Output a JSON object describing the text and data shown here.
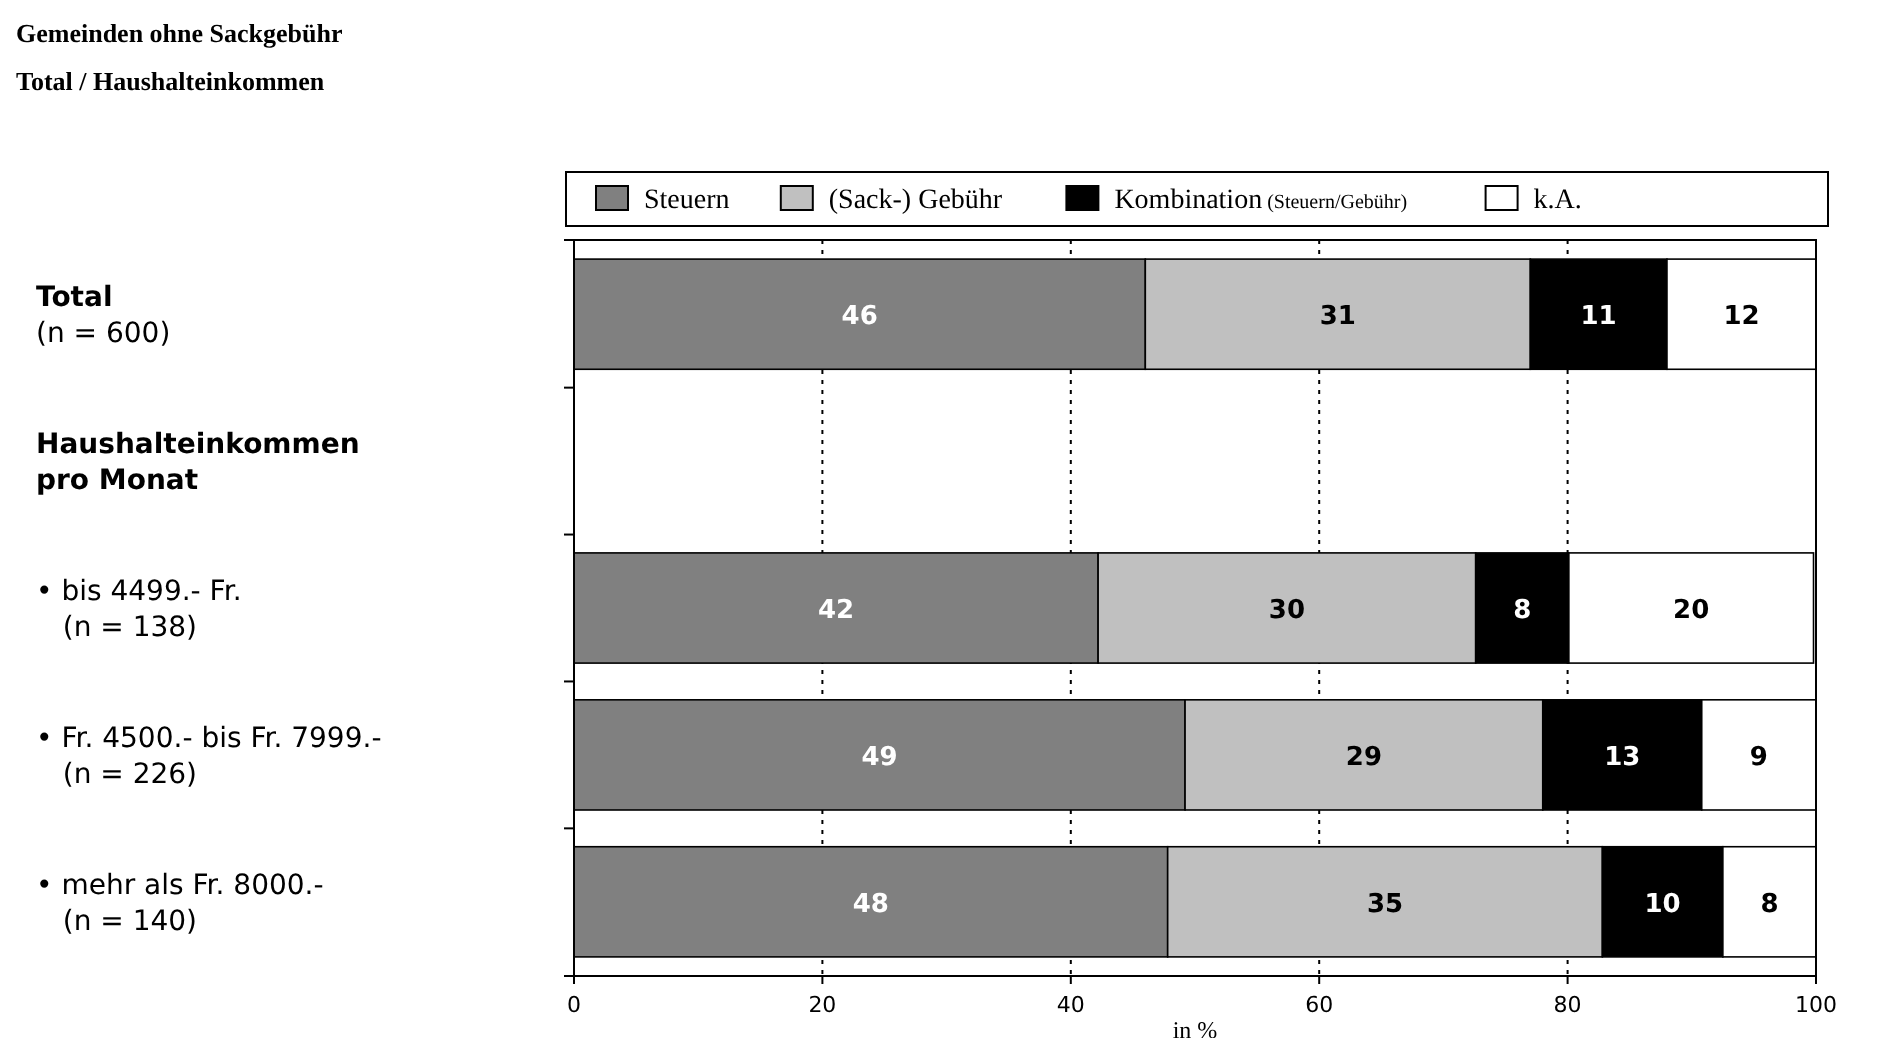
{
  "chart_data": {
    "type": "bar",
    "orientation": "horizontal",
    "stacked": true,
    "title": "Gemeinden ohne Sackgebühr",
    "subtitle": "Total / Haushalteinkommen",
    "xlabel": "in %",
    "categories": [
      "Total\n(n = 600)",
      "Haushalteinkommen\npro Monat",
      "• bis 4499.- Fr.\n   (n = 138)",
      "• Fr. 4500.- bis Fr. 7999.-\n   (n = 226)",
      "• mehr als Fr. 8000.-\n   (n = 140)"
    ],
    "series": [
      {
        "name": "Steuern",
        "color": "#808080",
        "values": [
          46,
          null,
          42.2,
          49.2,
          47.8
        ],
        "value_labels": [
          "46",
          null,
          "42",
          "49",
          "48"
        ]
      },
      {
        "name": "(Sack-) Gebühr",
        "color": "#c0c0c0",
        "values": [
          31,
          null,
          30.4,
          28.8,
          35
        ],
        "value_labels": [
          "31",
          null,
          "30",
          "29",
          "35"
        ]
      },
      {
        "name": "Kombination (Steuern/Gebühr)",
        "color": "#000000",
        "values": [
          11,
          null,
          7.5,
          12.8,
          9.7
        ],
        "value_labels": [
          "11",
          null,
          "8",
          "13",
          "10"
        ]
      },
      {
        "name": "k.A.",
        "color": "#ffffff",
        "values": [
          12,
          null,
          19.7,
          9.2,
          7.5
        ],
        "value_labels": [
          "12",
          null,
          "20",
          "9",
          "8"
        ]
      }
    ],
    "xlim": [
      0,
      100
    ],
    "xticks": [
      0,
      20,
      40,
      60,
      80,
      100
    ],
    "grid": "x",
    "legend": "top"
  }
}
